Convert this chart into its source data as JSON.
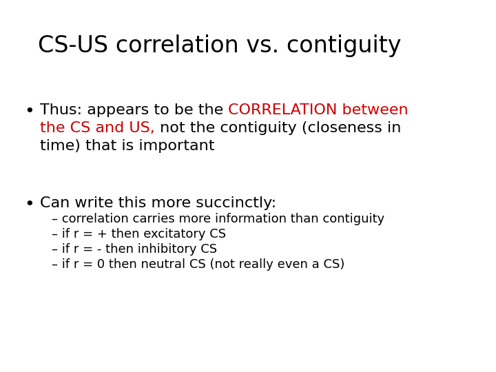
{
  "title": "CS-US correlation vs. contiguity",
  "title_fontsize": 24,
  "title_fontweight": "normal",
  "background_color": "#ffffff",
  "text_color": "#000000",
  "red_color": "#cc0000",
  "body_fontsize": 16,
  "sub_fontsize": 13,
  "bullet1_segments_line1": [
    {
      "text": "Thus: appears to be the ",
      "color": "#000000"
    },
    {
      "text": "CORRELATION between",
      "color": "#cc0000"
    }
  ],
  "bullet1_segments_line2": [
    {
      "text": "the CS and US,",
      "color": "#cc0000"
    },
    {
      "text": " not the contiguity (closeness in",
      "color": "#000000"
    }
  ],
  "bullet1_line3": "time) that is important",
  "bullet2_line": "Can write this more succinctly:",
  "sub_bullets": [
    "correlation carries more information than contiguity",
    "if r = + then excitatory CS",
    "if r = - then inhibitory CS",
    "if r = 0 then neutral CS (not really even a CS)"
  ],
  "font_family": "Arial"
}
